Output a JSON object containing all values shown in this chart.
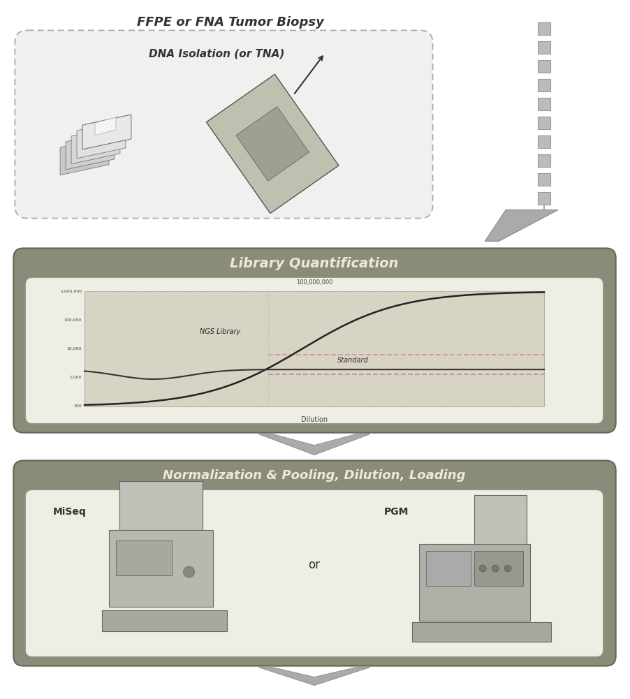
{
  "title_top": "FFPE or FNA Tumor Biopsy",
  "subtitle_top": "DNA Isolation (or TNA)",
  "title_middle": "Library Quantification",
  "title_bottom": "Normalization & Pooling, Dilution, Loading",
  "label_miseq": "MiSeq",
  "label_or": "or",
  "label_pgm": "PGM",
  "label_ngs_library": "NGS Library",
  "label_standard": "Standard",
  "bg_color": "#ffffff",
  "box_top_bg": "#f0f0ee",
  "box_top_border": "#aaaaaa",
  "box_mid_outer_bg": "#8b8b7a",
  "box_mid_inner_bg": "#eeeee4",
  "box_bot_outer_bg": "#8b8b7a",
  "box_bot_inner_bg": "#eeeee4",
  "text_color_dark": "#333333",
  "text_color_title": "#ede8d8",
  "graph_bg": "#d8d4c4",
  "dot_color": "#bbbbbb",
  "dot_border": "#999999",
  "funnel_color": "#aaaaaa",
  "chevron_color": "#aaaaaa"
}
